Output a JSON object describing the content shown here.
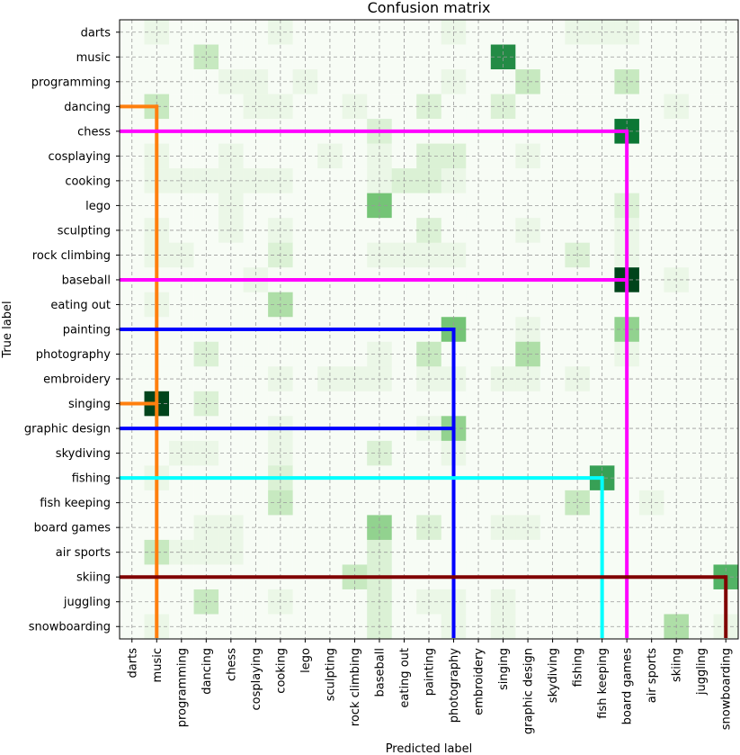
{
  "chart_data": {
    "type": "heatmap",
    "title": "Confusion matrix",
    "xlabel": "Predicted label",
    "ylabel": "True label",
    "labels": [
      "darts",
      "music",
      "programming",
      "dancing",
      "chess",
      "cosplaying",
      "cooking",
      "lego",
      "sculpting",
      "rock climbing",
      "baseball",
      "eating out",
      "painting",
      "photography",
      "embroidery",
      "singing",
      "graphic design",
      "skydiving",
      "fishing",
      "fish keeping",
      "board games",
      "air sports",
      "skiing",
      "juggling",
      "snowboarding"
    ],
    "colormap": "Greens",
    "grid": true,
    "values": [
      [
        0,
        1,
        0,
        0,
        0,
        0,
        1,
        0,
        0,
        0,
        0,
        0,
        0,
        1,
        0,
        0,
        0,
        0,
        1,
        1,
        1,
        0,
        0,
        0,
        0
      ],
      [
        0,
        0,
        0,
        3,
        0,
        0,
        0,
        0,
        0,
        0,
        0,
        0,
        0,
        0,
        0,
        9,
        0,
        0,
        0,
        0,
        0,
        0,
        0,
        0,
        0
      ],
      [
        0,
        0,
        0,
        0,
        1,
        1,
        0,
        1,
        0,
        0,
        0,
        0,
        0,
        1,
        0,
        0,
        3,
        0,
        0,
        0,
        3,
        0,
        0,
        0,
        0
      ],
      [
        0,
        3,
        0,
        0,
        0,
        1,
        1,
        0,
        0,
        1,
        0,
        0,
        2,
        0,
        0,
        2,
        0,
        0,
        0,
        0,
        0,
        0,
        1,
        0,
        0
      ],
      [
        0,
        0,
        0,
        0,
        0,
        0,
        0,
        0,
        0,
        0,
        2,
        0,
        0,
        0,
        0,
        0,
        0,
        0,
        0,
        0,
        10,
        0,
        0,
        0,
        0
      ],
      [
        0,
        1,
        0,
        0,
        1,
        0,
        0,
        0,
        1,
        0,
        1,
        0,
        2,
        2,
        0,
        0,
        1,
        0,
        0,
        0,
        0,
        0,
        0,
        0,
        0
      ],
      [
        0,
        1,
        1,
        1,
        1,
        1,
        1,
        0,
        0,
        0,
        1,
        2,
        2,
        1,
        0,
        0,
        0,
        0,
        0,
        0,
        0,
        0,
        0,
        0,
        0
      ],
      [
        0,
        0,
        0,
        0,
        1,
        0,
        0,
        0,
        0,
        0,
        6,
        0,
        0,
        0,
        0,
        0,
        0,
        0,
        0,
        0,
        2,
        0,
        0,
        0,
        0
      ],
      [
        0,
        1,
        0,
        0,
        1,
        0,
        1,
        0,
        0,
        0,
        0,
        0,
        2,
        0,
        0,
        0,
        1,
        0,
        0,
        0,
        1,
        0,
        0,
        0,
        0
      ],
      [
        0,
        1,
        1,
        0,
        0,
        0,
        2,
        0,
        0,
        0,
        1,
        1,
        1,
        1,
        0,
        0,
        0,
        0,
        2,
        0,
        1,
        0,
        0,
        0,
        0
      ],
      [
        0,
        0,
        0,
        0,
        0,
        1,
        0,
        0,
        0,
        0,
        0,
        0,
        0,
        0,
        0,
        0,
        0,
        0,
        0,
        0,
        12,
        0,
        1,
        0,
        0
      ],
      [
        0,
        1,
        0,
        0,
        0,
        0,
        4,
        0,
        0,
        0,
        0,
        0,
        0,
        0,
        0,
        0,
        0,
        0,
        0,
        0,
        0,
        0,
        0,
        0,
        0
      ],
      [
        0,
        0,
        0,
        0,
        0,
        0,
        0,
        0,
        0,
        0,
        0,
        0,
        0,
        6,
        0,
        0,
        1,
        0,
        0,
        0,
        5,
        0,
        0,
        0,
        0
      ],
      [
        0,
        0,
        0,
        2,
        0,
        0,
        0,
        0,
        0,
        0,
        1,
        0,
        3,
        0,
        0,
        0,
        4,
        0,
        0,
        0,
        1,
        0,
        0,
        0,
        0
      ],
      [
        0,
        0,
        0,
        0,
        0,
        0,
        1,
        0,
        1,
        1,
        1,
        0,
        1,
        1,
        0,
        1,
        1,
        0,
        1,
        0,
        0,
        0,
        0,
        0,
        0
      ],
      [
        0,
        12,
        0,
        2,
        0,
        0,
        0,
        0,
        0,
        0,
        0,
        0,
        0,
        0,
        0,
        0,
        0,
        0,
        0,
        0,
        0,
        0,
        0,
        0,
        0
      ],
      [
        0,
        0,
        0,
        0,
        0,
        0,
        1,
        0,
        0,
        0,
        0,
        0,
        1,
        5,
        0,
        0,
        0,
        0,
        0,
        0,
        0,
        0,
        0,
        0,
        0
      ],
      [
        0,
        0,
        1,
        1,
        0,
        0,
        1,
        0,
        0,
        0,
        2,
        0,
        0,
        1,
        0,
        0,
        0,
        0,
        0,
        0,
        0,
        0,
        0,
        0,
        0
      ],
      [
        0,
        1,
        0,
        0,
        0,
        0,
        2,
        0,
        0,
        0,
        0,
        0,
        0,
        0,
        0,
        0,
        0,
        0,
        0,
        8,
        0,
        0,
        0,
        0,
        0
      ],
      [
        0,
        0,
        0,
        0,
        0,
        0,
        3,
        0,
        0,
        0,
        0,
        0,
        0,
        0,
        0,
        0,
        0,
        0,
        3,
        0,
        0,
        1,
        0,
        0,
        0
      ],
      [
        0,
        0,
        0,
        1,
        1,
        0,
        0,
        0,
        0,
        0,
        5,
        0,
        2,
        0,
        0,
        1,
        1,
        0,
        0,
        0,
        0,
        0,
        0,
        0,
        0
      ],
      [
        0,
        3,
        1,
        1,
        1,
        0,
        0,
        0,
        0,
        0,
        2,
        0,
        0,
        0,
        0,
        0,
        0,
        0,
        0,
        0,
        0,
        0,
        0,
        0,
        0
      ],
      [
        0,
        0,
        0,
        0,
        0,
        0,
        0,
        0,
        0,
        3,
        2,
        0,
        0,
        0,
        0,
        0,
        0,
        0,
        0,
        0,
        0,
        0,
        0,
        0,
        7
      ],
      [
        0,
        0,
        0,
        3,
        0,
        0,
        1,
        0,
        0,
        0,
        2,
        0,
        1,
        1,
        0,
        1,
        0,
        0,
        0,
        0,
        0,
        0,
        0,
        0,
        0
      ],
      [
        0,
        1,
        0,
        0,
        0,
        0,
        0,
        0,
        0,
        0,
        2,
        0,
        0,
        1,
        0,
        1,
        0,
        0,
        0,
        0,
        0,
        0,
        4,
        0,
        1
      ]
    ],
    "highlights": [
      {
        "from": "dancing",
        "via": "singing",
        "to": "music",
        "color": "#ff7f0e"
      },
      {
        "from": "chess",
        "via": "baseball",
        "to": "board games",
        "color": "#ff00ff"
      },
      {
        "from": "painting",
        "via": "graphic design",
        "to": "photography",
        "color": "#0000ff"
      },
      {
        "from": "fishing",
        "to": "fish keeping",
        "color": "#00ffff"
      },
      {
        "from": "skiing",
        "to": "snowboarding",
        "color": "#800000"
      }
    ]
  }
}
